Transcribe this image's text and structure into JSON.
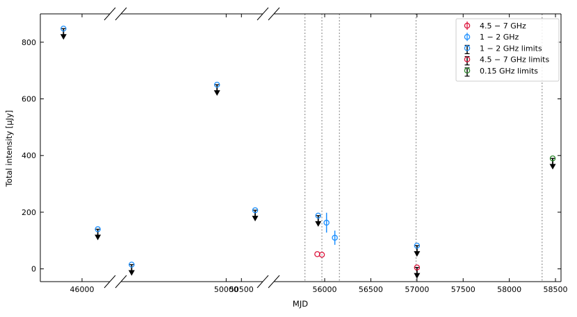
{
  "chart_data": {
    "type": "scatter",
    "xlabel": "MJD",
    "ylabel": "Total intensity [μJy]",
    "ylim": [
      -45,
      900
    ],
    "yticks": [
      0,
      200,
      400,
      600,
      800
    ],
    "x_segments": [
      {
        "xlim": [
          45550,
          46300
        ],
        "xticks": [
          46000
        ]
      },
      {
        "xlim": [
          46550,
          51200
        ],
        "xticks": [
          50000,
          50500
        ]
      },
      {
        "xlim": [
          55450,
          58560
        ],
        "xticks": [
          56000,
          56500,
          57000,
          57500,
          58000,
          58500
        ]
      }
    ],
    "xtick_labels": [
      "46000",
      "50000",
      "50500",
      "56000",
      "56500",
      "57000",
      "57500",
      "58000",
      "58500"
    ],
    "ytick_labels": [
      "0",
      "200",
      "400",
      "600",
      "800"
    ],
    "vlines": [
      55786,
      55970,
      56160,
      56990,
      58355
    ],
    "series": [
      {
        "name": "4.5 − 7 GHz",
        "kind": "detection",
        "color": "#dc143c",
        "points": [
          {
            "x": 55920,
            "y": 52,
            "err": 0
          },
          {
            "x": 55970,
            "y": 50,
            "err": 0
          }
        ]
      },
      {
        "name": "1 − 2 GHz",
        "kind": "detection",
        "color": "#1e90ff",
        "points": [
          {
            "x": 56020,
            "y": 163,
            "err": 35
          },
          {
            "x": 56110,
            "y": 110,
            "err": 25
          }
        ]
      },
      {
        "name": "1 − 2 GHz limits",
        "kind": "limit",
        "color": "#1e90ff",
        "points": [
          {
            "x": 45800,
            "y": 848
          },
          {
            "x": 46170,
            "y": 140
          },
          {
            "x": 46900,
            "y": 15
          },
          {
            "x": 49700,
            "y": 650
          },
          {
            "x": 50950,
            "y": 207
          },
          {
            "x": 55930,
            "y": 188
          },
          {
            "x": 57000,
            "y": 82
          }
        ]
      },
      {
        "name": "4.5 − 7 GHz limits",
        "kind": "limit",
        "color": "#dc143c",
        "points": [
          {
            "x": 57000,
            "y": 5
          }
        ]
      },
      {
        "name": "0.15 GHz limits",
        "kind": "limit",
        "color": "#2e8b2e",
        "points": [
          {
            "x": 58470,
            "y": 390
          }
        ]
      }
    ],
    "legend_position": "top-right",
    "grid": false
  }
}
